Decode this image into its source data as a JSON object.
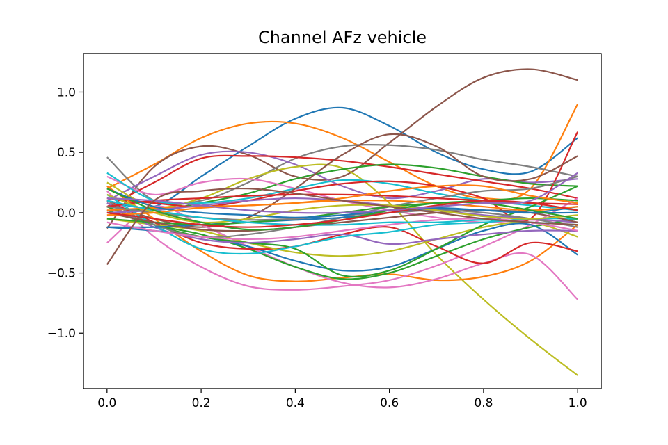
{
  "chart_data": {
    "type": "line",
    "title": "Channel AFz vehicle",
    "xlabel": "",
    "ylabel": "",
    "xlim": [
      -0.05,
      1.05
    ],
    "ylim": [
      -1.46,
      1.32
    ],
    "xticks": [
      0.0,
      0.2,
      0.4,
      0.6,
      0.8,
      1.0
    ],
    "xtick_labels": [
      "0.0",
      "0.2",
      "0.4",
      "0.6",
      "0.8",
      "1.0"
    ],
    "yticks": [
      -1.0,
      -0.5,
      0.0,
      0.5,
      1.0
    ],
    "ytick_labels": [
      "−1.0",
      "−0.5",
      "0.0",
      "0.5",
      "1.0"
    ],
    "grid": false,
    "legend": "none",
    "x": [
      0.0,
      0.1,
      0.2,
      0.3,
      0.4,
      0.5,
      0.6,
      0.7,
      0.8,
      0.9,
      1.0
    ],
    "series": [
      {
        "color": "#1f77b4",
        "values": [
          0.1,
          0.05,
          0.3,
          0.55,
          0.78,
          0.87,
          0.72,
          0.5,
          0.36,
          0.34,
          0.62
        ]
      },
      {
        "color": "#ff7f0e",
        "values": [
          0.2,
          0.4,
          0.62,
          0.74,
          0.74,
          0.62,
          0.42,
          0.22,
          0.12,
          0.2,
          0.9
        ]
      },
      {
        "color": "#8c564b",
        "values": [
          -0.13,
          0.38,
          0.55,
          0.48,
          0.3,
          0.3,
          0.58,
          0.88,
          1.12,
          1.19,
          1.1
        ]
      },
      {
        "color": "#7f7f7f",
        "values": [
          0.46,
          0.1,
          0.1,
          0.25,
          0.45,
          0.55,
          0.56,
          0.52,
          0.44,
          0.38,
          0.3
        ]
      },
      {
        "color": "#9467bd",
        "values": [
          0.1,
          0.3,
          0.48,
          0.5,
          0.4,
          0.22,
          0.12,
          0.18,
          0.28,
          0.25,
          0.28
        ]
      },
      {
        "color": "#d62728",
        "values": [
          0.05,
          0.25,
          0.45,
          0.47,
          0.46,
          0.43,
          0.38,
          0.32,
          0.26,
          0.2,
          0.12
        ]
      },
      {
        "color": "#bcbd22",
        "values": [
          0.25,
          0.05,
          0.12,
          0.28,
          0.38,
          0.37,
          0.08,
          -0.35,
          -0.72,
          -1.05,
          -1.35
        ]
      },
      {
        "color": "#2ca02c",
        "values": [
          0.05,
          0.02,
          0.08,
          0.16,
          0.28,
          0.36,
          0.4,
          0.37,
          0.3,
          0.24,
          0.22
        ]
      },
      {
        "color": "#e377c2",
        "values": [
          0.3,
          0.15,
          0.25,
          0.28,
          0.2,
          0.1,
          0.02,
          -0.04,
          -0.08,
          -0.06,
          -0.08
        ]
      },
      {
        "color": "#17becf",
        "values": [
          0.33,
          0.1,
          0.08,
          0.12,
          0.2,
          0.27,
          0.24,
          0.16,
          0.1,
          0.06,
          0.02
        ]
      },
      {
        "color": "#d62728",
        "values": [
          0.12,
          0.08,
          0.05,
          0.1,
          0.18,
          0.24,
          0.26,
          0.22,
          0.12,
          -0.05,
          0.67
        ]
      },
      {
        "color": "#8c564b",
        "values": [
          0.08,
          -0.05,
          -0.12,
          -0.04,
          0.2,
          0.48,
          0.65,
          0.55,
          0.3,
          0.28,
          0.47
        ]
      },
      {
        "color": "#ff7f0e",
        "values": [
          0.22,
          -0.05,
          -0.32,
          -0.52,
          -0.57,
          -0.54,
          -0.51,
          -0.56,
          -0.53,
          -0.4,
          -0.1
        ]
      },
      {
        "color": "#e377c2",
        "values": [
          0.18,
          -0.2,
          -0.45,
          -0.61,
          -0.64,
          -0.61,
          -0.56,
          -0.44,
          -0.28,
          -0.1,
          0.12
        ]
      },
      {
        "color": "#e377c2",
        "values": [
          -0.25,
          0.05,
          -0.1,
          -0.28,
          -0.45,
          -0.58,
          -0.62,
          -0.55,
          -0.42,
          -0.35,
          -0.72
        ]
      },
      {
        "color": "#2ca02c",
        "values": [
          0.02,
          -0.1,
          -0.18,
          -0.3,
          -0.45,
          -0.55,
          -0.5,
          -0.36,
          -0.22,
          -0.12,
          -0.05
        ]
      },
      {
        "color": "#1f77b4",
        "values": [
          -0.12,
          -0.15,
          -0.2,
          -0.28,
          -0.4,
          -0.48,
          -0.45,
          -0.3,
          -0.15,
          -0.1,
          -0.35
        ]
      },
      {
        "color": "#d62728",
        "values": [
          0.1,
          -0.08,
          -0.25,
          -0.3,
          -0.28,
          -0.18,
          -0.12,
          -0.28,
          -0.42,
          -0.25,
          -0.32
        ]
      },
      {
        "color": "#bcbd22",
        "values": [
          -0.05,
          -0.1,
          -0.15,
          -0.25,
          -0.33,
          -0.36,
          -0.32,
          -0.22,
          -0.12,
          -0.08,
          -0.2
        ]
      },
      {
        "color": "#2ca02c",
        "values": [
          0.05,
          -0.1,
          -0.2,
          -0.25,
          -0.3,
          -0.52,
          -0.48,
          -0.3,
          -0.1,
          0.05,
          0.22
        ]
      },
      {
        "color": "#9467bd",
        "values": [
          0.08,
          -0.12,
          -0.22,
          -0.25,
          -0.22,
          -0.18,
          -0.26,
          -0.22,
          -0.18,
          -0.15,
          -0.15
        ]
      },
      {
        "color": "#17becf",
        "values": [
          0.15,
          -0.1,
          -0.3,
          -0.34,
          -0.28,
          -0.2,
          -0.16,
          -0.1,
          -0.08,
          -0.05,
          -0.05
        ]
      },
      {
        "color": "#7f7f7f",
        "values": [
          0.1,
          -0.1,
          -0.2,
          -0.18,
          -0.12,
          -0.04,
          0.05,
          0.12,
          0.18,
          0.2,
          0.3
        ]
      },
      {
        "color": "#1f77b4",
        "values": [
          -0.12,
          -0.12,
          -0.1,
          -0.08,
          -0.06,
          -0.04,
          0.0,
          0.03,
          0.02,
          0.0,
          0.05
        ]
      },
      {
        "color": "#ff7f0e",
        "values": [
          0.02,
          0.04,
          0.05,
          0.06,
          0.08,
          0.1,
          0.1,
          0.08,
          0.05,
          0.02,
          0.05
        ]
      },
      {
        "color": "#2ca02c",
        "values": [
          -0.05,
          -0.08,
          -0.1,
          -0.08,
          -0.05,
          0.0,
          0.05,
          0.08,
          0.1,
          0.12,
          0.1
        ]
      },
      {
        "color": "#d62728",
        "values": [
          0.05,
          0.1,
          0.12,
          0.14,
          0.15,
          0.15,
          0.14,
          0.12,
          0.1,
          0.08,
          0.07
        ]
      },
      {
        "color": "#9467bd",
        "values": [
          0.0,
          0.02,
          0.06,
          0.1,
          0.12,
          0.1,
          0.06,
          0.02,
          -0.02,
          -0.05,
          -0.08
        ]
      },
      {
        "color": "#8c564b",
        "values": [
          0.0,
          -0.08,
          -0.14,
          -0.15,
          -0.12,
          -0.08,
          -0.04,
          0.0,
          0.02,
          0.0,
          -0.08
        ]
      },
      {
        "color": "#e377c2",
        "values": [
          -0.08,
          -0.15,
          -0.2,
          -0.22,
          -0.2,
          -0.15,
          -0.1,
          -0.06,
          -0.05,
          -0.08,
          -0.15
        ]
      },
      {
        "color": "#7f7f7f",
        "values": [
          0.05,
          0.0,
          -0.04,
          -0.06,
          -0.05,
          -0.02,
          0.0,
          0.02,
          0.0,
          -0.05,
          -0.12
        ]
      },
      {
        "color": "#bcbd22",
        "values": [
          0.15,
          0.0,
          -0.08,
          -0.05,
          0.02,
          0.06,
          0.06,
          0.02,
          -0.03,
          -0.05,
          -0.02
        ]
      },
      {
        "color": "#17becf",
        "values": [
          0.1,
          0.02,
          -0.04,
          -0.08,
          -0.1,
          -0.1,
          -0.08,
          -0.08,
          -0.06,
          -0.08,
          -0.1
        ]
      },
      {
        "color": "#1f77b4",
        "values": [
          0.2,
          0.05,
          0.0,
          -0.02,
          -0.04,
          -0.02,
          0.02,
          0.04,
          0.02,
          0.0,
          0.0
        ]
      },
      {
        "color": "#ff7f0e",
        "values": [
          -0.02,
          0.0,
          0.04,
          0.06,
          0.08,
          0.12,
          0.18,
          0.22,
          0.22,
          0.14,
          0.08
        ]
      },
      {
        "color": "#2ca02c",
        "values": [
          0.2,
          0.02,
          -0.08,
          -0.14,
          -0.12,
          -0.06,
          0.02,
          0.08,
          0.08,
          0.02,
          -0.05
        ]
      },
      {
        "color": "#d62728",
        "values": [
          0.0,
          -0.05,
          -0.1,
          -0.12,
          -0.1,
          -0.06,
          0.0,
          0.06,
          0.1,
          0.08,
          0.02
        ]
      },
      {
        "color": "#9467bd",
        "values": [
          0.12,
          0.1,
          0.06,
          0.02,
          0.0,
          0.0,
          0.02,
          0.05,
          0.08,
          0.1,
          0.33
        ]
      },
      {
        "color": "#8c564b",
        "values": [
          -0.43,
          0.1,
          0.18,
          0.2,
          0.16,
          0.1,
          0.05,
          0.0,
          -0.05,
          -0.08,
          -0.1
        ]
      }
    ]
  }
}
